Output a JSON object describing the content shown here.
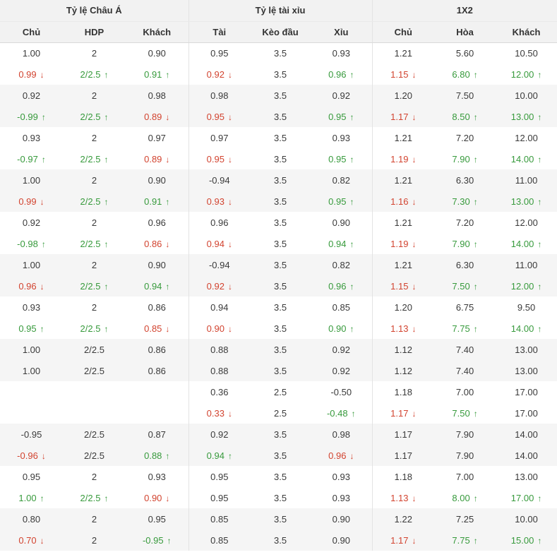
{
  "colors": {
    "up_green": "#379a3c",
    "down_red": "#d2432f",
    "text": "#3a3a3a",
    "header_bg": "#f2f2f2",
    "row_alt_bg": "#f5f5f5",
    "divider": "#e3e3e3"
  },
  "icons": {
    "up": "↑",
    "down": "↓"
  },
  "table": {
    "groups": [
      {
        "label": "Tỷ lệ Châu Á",
        "columns": [
          "Chủ",
          "HDP",
          "Khách"
        ]
      },
      {
        "label": "Tỷ lệ tài xỉu",
        "columns": [
          "Tài",
          "Kèo đầu",
          "Xỉu"
        ]
      },
      {
        "label": "1X2",
        "columns": [
          "Chủ",
          "Hòa",
          "Khách"
        ]
      }
    ],
    "rows": [
      [
        {
          "v": "1.00"
        },
        {
          "v": "2"
        },
        {
          "v": "0.90"
        },
        {
          "v": "0.95"
        },
        {
          "v": "3.5"
        },
        {
          "v": "0.93"
        },
        {
          "v": "1.21"
        },
        {
          "v": "5.60"
        },
        {
          "v": "10.50"
        }
      ],
      [
        {
          "v": "0.99",
          "t": "down"
        },
        {
          "v": "2/2.5",
          "t": "up"
        },
        {
          "v": "0.91",
          "t": "up"
        },
        {
          "v": "0.92",
          "t": "down"
        },
        {
          "v": "3.5"
        },
        {
          "v": "0.96",
          "t": "up"
        },
        {
          "v": "1.15",
          "t": "down"
        },
        {
          "v": "6.80",
          "t": "up"
        },
        {
          "v": "12.00",
          "t": "up"
        }
      ],
      [
        {
          "v": "0.92"
        },
        {
          "v": "2"
        },
        {
          "v": "0.98"
        },
        {
          "v": "0.98"
        },
        {
          "v": "3.5"
        },
        {
          "v": "0.92"
        },
        {
          "v": "1.20"
        },
        {
          "v": "7.50"
        },
        {
          "v": "10.00"
        }
      ],
      [
        {
          "v": "-0.99",
          "t": "up"
        },
        {
          "v": "2/2.5",
          "t": "up"
        },
        {
          "v": "0.89",
          "t": "down"
        },
        {
          "v": "0.95",
          "t": "down"
        },
        {
          "v": "3.5"
        },
        {
          "v": "0.95",
          "t": "up"
        },
        {
          "v": "1.17",
          "t": "down"
        },
        {
          "v": "8.50",
          "t": "up"
        },
        {
          "v": "13.00",
          "t": "up"
        }
      ],
      [
        {
          "v": "0.93"
        },
        {
          "v": "2"
        },
        {
          "v": "0.97"
        },
        {
          "v": "0.97"
        },
        {
          "v": "3.5"
        },
        {
          "v": "0.93"
        },
        {
          "v": "1.21"
        },
        {
          "v": "7.20"
        },
        {
          "v": "12.00"
        }
      ],
      [
        {
          "v": "-0.97",
          "t": "up"
        },
        {
          "v": "2/2.5",
          "t": "up"
        },
        {
          "v": "0.89",
          "t": "down"
        },
        {
          "v": "0.95",
          "t": "down"
        },
        {
          "v": "3.5"
        },
        {
          "v": "0.95",
          "t": "up"
        },
        {
          "v": "1.19",
          "t": "down"
        },
        {
          "v": "7.90",
          "t": "up"
        },
        {
          "v": "14.00",
          "t": "up"
        }
      ],
      [
        {
          "v": "1.00"
        },
        {
          "v": "2"
        },
        {
          "v": "0.90"
        },
        {
          "v": "-0.94"
        },
        {
          "v": "3.5"
        },
        {
          "v": "0.82"
        },
        {
          "v": "1.21"
        },
        {
          "v": "6.30"
        },
        {
          "v": "11.00"
        }
      ],
      [
        {
          "v": "0.99",
          "t": "down"
        },
        {
          "v": "2/2.5",
          "t": "up"
        },
        {
          "v": "0.91",
          "t": "up"
        },
        {
          "v": "0.93",
          "t": "down"
        },
        {
          "v": "3.5"
        },
        {
          "v": "0.95",
          "t": "up"
        },
        {
          "v": "1.16",
          "t": "down"
        },
        {
          "v": "7.30",
          "t": "up"
        },
        {
          "v": "13.00",
          "t": "up"
        }
      ],
      [
        {
          "v": "0.92"
        },
        {
          "v": "2"
        },
        {
          "v": "0.96"
        },
        {
          "v": "0.96"
        },
        {
          "v": "3.5"
        },
        {
          "v": "0.90"
        },
        {
          "v": "1.21"
        },
        {
          "v": "7.20"
        },
        {
          "v": "12.00"
        }
      ],
      [
        {
          "v": "-0.98",
          "t": "up"
        },
        {
          "v": "2/2.5",
          "t": "up"
        },
        {
          "v": "0.86",
          "t": "down"
        },
        {
          "v": "0.94",
          "t": "down"
        },
        {
          "v": "3.5"
        },
        {
          "v": "0.94",
          "t": "up"
        },
        {
          "v": "1.19",
          "t": "down"
        },
        {
          "v": "7.90",
          "t": "up"
        },
        {
          "v": "14.00",
          "t": "up"
        }
      ],
      [
        {
          "v": "1.00"
        },
        {
          "v": "2"
        },
        {
          "v": "0.90"
        },
        {
          "v": "-0.94"
        },
        {
          "v": "3.5"
        },
        {
          "v": "0.82"
        },
        {
          "v": "1.21"
        },
        {
          "v": "6.30"
        },
        {
          "v": "11.00"
        }
      ],
      [
        {
          "v": "0.96",
          "t": "down"
        },
        {
          "v": "2/2.5",
          "t": "up"
        },
        {
          "v": "0.94",
          "t": "up"
        },
        {
          "v": "0.92",
          "t": "down"
        },
        {
          "v": "3.5"
        },
        {
          "v": "0.96",
          "t": "up"
        },
        {
          "v": "1.15",
          "t": "down"
        },
        {
          "v": "7.50",
          "t": "up"
        },
        {
          "v": "12.00",
          "t": "up"
        }
      ],
      [
        {
          "v": "0.93"
        },
        {
          "v": "2"
        },
        {
          "v": "0.86"
        },
        {
          "v": "0.94"
        },
        {
          "v": "3.5"
        },
        {
          "v": "0.85"
        },
        {
          "v": "1.20"
        },
        {
          "v": "6.75"
        },
        {
          "v": "9.50"
        }
      ],
      [
        {
          "v": "0.95",
          "t": "up"
        },
        {
          "v": "2/2.5",
          "t": "up"
        },
        {
          "v": "0.85",
          "t": "down"
        },
        {
          "v": "0.90",
          "t": "down"
        },
        {
          "v": "3.5"
        },
        {
          "v": "0.90",
          "t": "up"
        },
        {
          "v": "1.13",
          "t": "down"
        },
        {
          "v": "7.75",
          "t": "up"
        },
        {
          "v": "14.00",
          "t": "up"
        }
      ],
      [
        {
          "v": "1.00"
        },
        {
          "v": "2/2.5"
        },
        {
          "v": "0.86"
        },
        {
          "v": "0.88"
        },
        {
          "v": "3.5"
        },
        {
          "v": "0.92"
        },
        {
          "v": "1.12"
        },
        {
          "v": "7.40"
        },
        {
          "v": "13.00"
        }
      ],
      [
        {
          "v": "1.00"
        },
        {
          "v": "2/2.5"
        },
        {
          "v": "0.86"
        },
        {
          "v": "0.88"
        },
        {
          "v": "3.5"
        },
        {
          "v": "0.92"
        },
        {
          "v": "1.12"
        },
        {
          "v": "7.40"
        },
        {
          "v": "13.00"
        }
      ],
      [
        null,
        null,
        null,
        {
          "v": "0.36"
        },
        {
          "v": "2.5"
        },
        {
          "v": "-0.50"
        },
        {
          "v": "1.18"
        },
        {
          "v": "7.00"
        },
        {
          "v": "17.00"
        }
      ],
      [
        null,
        null,
        null,
        {
          "v": "0.33",
          "t": "down"
        },
        {
          "v": "2.5"
        },
        {
          "v": "-0.48",
          "t": "up"
        },
        {
          "v": "1.17",
          "t": "down"
        },
        {
          "v": "7.50",
          "t": "up"
        },
        {
          "v": "17.00"
        }
      ],
      [
        {
          "v": "-0.95"
        },
        {
          "v": "2/2.5"
        },
        {
          "v": "0.87"
        },
        {
          "v": "0.92"
        },
        {
          "v": "3.5"
        },
        {
          "v": "0.98"
        },
        {
          "v": "1.17"
        },
        {
          "v": "7.90"
        },
        {
          "v": "14.00"
        }
      ],
      [
        {
          "v": "-0.96",
          "t": "down"
        },
        {
          "v": "2/2.5"
        },
        {
          "v": "0.88",
          "t": "up"
        },
        {
          "v": "0.94",
          "t": "up"
        },
        {
          "v": "3.5"
        },
        {
          "v": "0.96",
          "t": "down"
        },
        {
          "v": "1.17"
        },
        {
          "v": "7.90"
        },
        {
          "v": "14.00"
        }
      ],
      [
        {
          "v": "0.95"
        },
        {
          "v": "2"
        },
        {
          "v": "0.93"
        },
        {
          "v": "0.95"
        },
        {
          "v": "3.5"
        },
        {
          "v": "0.93"
        },
        {
          "v": "1.18"
        },
        {
          "v": "7.00"
        },
        {
          "v": "13.00"
        }
      ],
      [
        {
          "v": "1.00",
          "t": "up"
        },
        {
          "v": "2/2.5",
          "t": "up"
        },
        {
          "v": "0.90",
          "t": "down"
        },
        {
          "v": "0.95"
        },
        {
          "v": "3.5"
        },
        {
          "v": "0.93"
        },
        {
          "v": "1.13",
          "t": "down"
        },
        {
          "v": "8.00",
          "t": "up"
        },
        {
          "v": "17.00",
          "t": "up"
        }
      ],
      [
        {
          "v": "0.80"
        },
        {
          "v": "2"
        },
        {
          "v": "0.95"
        },
        {
          "v": "0.85"
        },
        {
          "v": "3.5"
        },
        {
          "v": "0.90"
        },
        {
          "v": "1.22"
        },
        {
          "v": "7.25"
        },
        {
          "v": "10.00"
        }
      ],
      [
        {
          "v": "0.70",
          "t": "down"
        },
        {
          "v": "2"
        },
        {
          "v": "-0.95",
          "t": "up"
        },
        {
          "v": "0.85"
        },
        {
          "v": "3.5"
        },
        {
          "v": "0.90"
        },
        {
          "v": "1.17",
          "t": "down"
        },
        {
          "v": "7.75",
          "t": "up"
        },
        {
          "v": "15.00",
          "t": "up"
        }
      ]
    ]
  }
}
